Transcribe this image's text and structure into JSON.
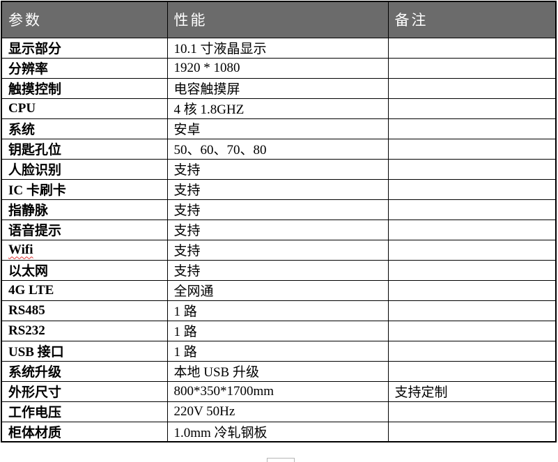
{
  "theme": {
    "header_bg": "#6b6b6b",
    "header_text": "#ffffff",
    "border_color": "#000000",
    "spellcheck_color": "#e03030"
  },
  "table": {
    "headers": {
      "param": "参数",
      "value": "性能",
      "note": "备注"
    },
    "rows": [
      {
        "param": "显示部分",
        "value": "10.1 寸液晶显示",
        "note": ""
      },
      {
        "param": "分辨率",
        "value": "1920 * 1080",
        "note": ""
      },
      {
        "param": "触摸控制",
        "value": "电容触摸屏",
        "note": ""
      },
      {
        "param": "CPU",
        "value": "4 核 1.8GHZ",
        "note": ""
      },
      {
        "param": "系统",
        "value": "安卓",
        "note": ""
      },
      {
        "param": "钥匙孔位",
        "value": "50、60、70、80",
        "note": ""
      },
      {
        "param": "人脸识别",
        "value": "支持",
        "note": ""
      },
      {
        "param": "IC 卡刷卡",
        "value": "支持",
        "note": ""
      },
      {
        "param": "指静脉",
        "value": "支持",
        "note": ""
      },
      {
        "param": "语音提示",
        "value": "支持",
        "note": ""
      },
      {
        "param": "Wifi",
        "value": "支持",
        "note": "",
        "spellcheck": true
      },
      {
        "param": "以太网",
        "value": "支持",
        "note": ""
      },
      {
        "param": "4G LTE",
        "value": "全网通",
        "note": ""
      },
      {
        "param": "RS485",
        "value": "1 路",
        "note": ""
      },
      {
        "param": "RS232",
        "value": "1 路",
        "note": ""
      },
      {
        "param": "USB 接口",
        "value": "1 路",
        "note": ""
      },
      {
        "param": "系统升级",
        "value": "本地 USB 升级",
        "note": ""
      },
      {
        "param": "外形尺寸",
        "value": "800*350*1700mm",
        "note": "支持定制"
      },
      {
        "param": "工作电压",
        "value": "220V 50Hz",
        "note": ""
      },
      {
        "param": "柜体材质",
        "value": "1.0mm 冷轧钢板",
        "note": ""
      }
    ]
  }
}
